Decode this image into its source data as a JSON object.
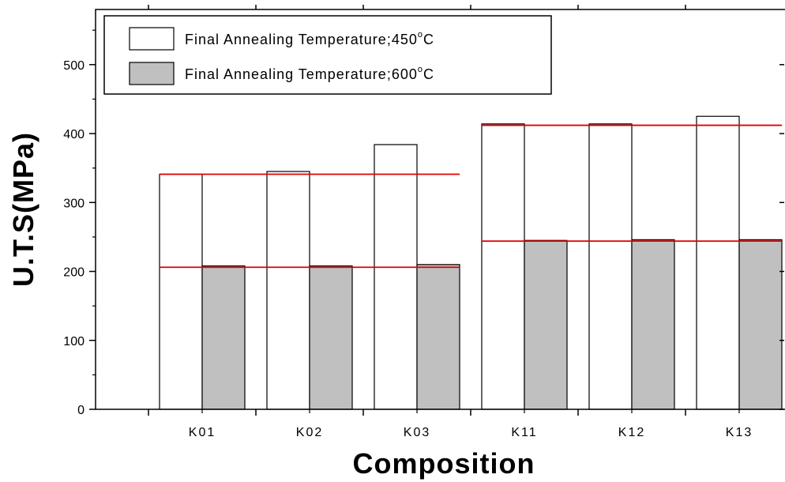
{
  "chart_data": {
    "type": "bar",
    "xlabel": "Composition",
    "ylabel": "U.T.S(MPa)",
    "ylim": [
      0,
      580
    ],
    "yticks": [
      0,
      100,
      200,
      300,
      400,
      500
    ],
    "categories": [
      "K01",
      "K02",
      "K03",
      "K11",
      "K12",
      "K13"
    ],
    "series": [
      {
        "name": "Final Annealing Temperature;450°C",
        "legend_text": "Final Annealing Temperature;450",
        "legend_sup": "o",
        "legend_unit": "C",
        "color": "#ffffff",
        "values": [
          341,
          345,
          384,
          414,
          414,
          425
        ]
      },
      {
        "name": "Final Annealing Temperature;600°C",
        "legend_text": "Final Annealing Temperature;600",
        "legend_sup": "o",
        "legend_unit": "C",
        "color": "#c0c0c0",
        "values": [
          208,
          208,
          210,
          245,
          246,
          246
        ]
      }
    ],
    "reference_lines": [
      {
        "value": 341,
        "from": "K01",
        "to": "K03",
        "color": "#e00000"
      },
      {
        "value": 206,
        "from": "K01",
        "to": "K03",
        "color": "#e00000"
      },
      {
        "value": 412,
        "from": "K11",
        "to": "K13",
        "color": "#e00000"
      },
      {
        "value": 244,
        "from": "K11",
        "to": "K13",
        "color": "#e00000"
      }
    ],
    "legend_position": "top-left",
    "grid": false
  }
}
